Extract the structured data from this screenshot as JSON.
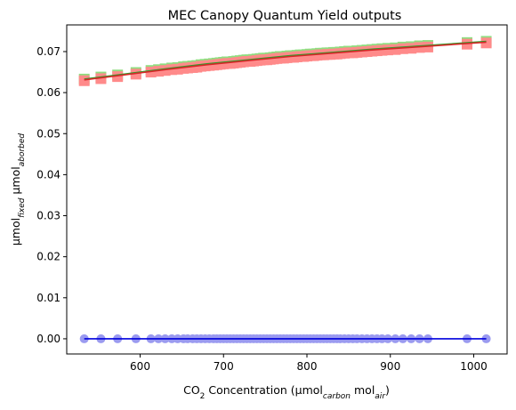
{
  "chart_data": {
    "type": "scatter",
    "title": "MEC Canopy Quantum Yield outputs",
    "xlabel_parts": [
      {
        "t": "CO",
        "sub": false
      },
      {
        "t": "2",
        "sub": true
      },
      {
        "t": " Concentration (µmol",
        "sub": false
      },
      {
        "t": "carbon",
        "sub": true
      },
      {
        "t": " mol",
        "sub": false
      },
      {
        "t": "air",
        "sub": true
      },
      {
        "t": ")",
        "sub": false
      }
    ],
    "ylabel_parts": [
      {
        "t": "µmol",
        "sub": false
      },
      {
        "t": "fixed",
        "sub": true
      },
      {
        "t": " µmol",
        "sub": false
      },
      {
        "t": "aborbed",
        "sub": true
      }
    ],
    "xlim": [
      512,
      1040
    ],
    "ylim": [
      -0.0037,
      0.0765
    ],
    "xticks": [
      600,
      700,
      800,
      900,
      1000
    ],
    "xtick_labels": [
      "600",
      "700",
      "800",
      "900",
      "1000"
    ],
    "yticks": [
      0.0,
      0.01,
      0.02,
      0.03,
      0.04,
      0.05,
      0.06,
      0.07
    ],
    "ytick_labels": [
      "0.00",
      "0.01",
      "0.02",
      "0.03",
      "0.04",
      "0.05",
      "0.06",
      "0.07"
    ],
    "grid": false,
    "x": [
      533,
      553,
      573,
      595,
      613,
      622,
      630,
      638,
      645,
      652,
      657,
      663,
      668,
      673,
      678,
      683,
      688,
      692,
      696,
      700,
      704,
      708,
      712,
      716,
      720,
      724,
      728,
      732,
      736,
      740,
      744,
      748,
      752,
      756,
      760,
      764,
      768,
      772,
      776,
      780,
      784,
      788,
      792,
      796,
      800,
      804,
      808,
      812,
      816,
      820,
      824,
      828,
      832,
      836,
      840,
      845,
      850,
      855,
      860,
      866,
      872,
      878,
      884,
      890,
      897,
      906,
      915,
      925,
      935,
      945,
      992,
      1015
    ],
    "series": [
      {
        "role": "green-squares",
        "color": "#90dd80",
        "marker": "square",
        "values": [
          0.0633,
          0.0638,
          0.0643,
          0.0649,
          0.0654,
          0.0656,
          0.0658,
          0.066,
          0.0661,
          0.0663,
          0.0664,
          0.0665,
          0.0666,
          0.0668,
          0.0669,
          0.067,
          0.0671,
          0.0672,
          0.0673,
          0.0674,
          0.0675,
          0.0675,
          0.0676,
          0.0677,
          0.0678,
          0.0679,
          0.068,
          0.068,
          0.0681,
          0.0682,
          0.0683,
          0.0684,
          0.0684,
          0.0685,
          0.0686,
          0.0687,
          0.0688,
          0.0688,
          0.0689,
          0.069,
          0.069,
          0.0691,
          0.0692,
          0.0692,
          0.0693,
          0.0694,
          0.0694,
          0.0695,
          0.0696,
          0.0696,
          0.0697,
          0.0697,
          0.0698,
          0.0698,
          0.0699,
          0.07,
          0.0701,
          0.0701,
          0.0702,
          0.0703,
          0.0704,
          0.0705,
          0.0706,
          0.0707,
          0.0708,
          0.0709,
          0.0711,
          0.0712,
          0.0714,
          0.0715,
          0.0722,
          0.0725
        ]
      },
      {
        "role": "red-squares",
        "color": "#ff8a8a",
        "marker": "square",
        "values": [
          0.0629,
          0.0634,
          0.0639,
          0.0645,
          0.065,
          0.0652,
          0.0654,
          0.0656,
          0.0657,
          0.0659,
          0.066,
          0.0661,
          0.0662,
          0.0664,
          0.0665,
          0.0666,
          0.0667,
          0.0668,
          0.0669,
          0.067,
          0.0671,
          0.0671,
          0.0672,
          0.0673,
          0.0674,
          0.0675,
          0.0676,
          0.0676,
          0.0677,
          0.0678,
          0.0679,
          0.068,
          0.068,
          0.0681,
          0.0682,
          0.0683,
          0.0684,
          0.0684,
          0.0685,
          0.0686,
          0.0686,
          0.0687,
          0.0688,
          0.0688,
          0.0689,
          0.069,
          0.069,
          0.0691,
          0.0692,
          0.0692,
          0.0693,
          0.0693,
          0.0694,
          0.0694,
          0.0695,
          0.0696,
          0.0697,
          0.0697,
          0.0698,
          0.0699,
          0.07,
          0.0701,
          0.0702,
          0.0703,
          0.0704,
          0.0705,
          0.0707,
          0.0708,
          0.071,
          0.0711,
          0.0718,
          0.0721
        ]
      },
      {
        "role": "blue-circles",
        "color": "#9a9af0",
        "marker": "circle",
        "values": [
          0,
          0,
          0,
          0,
          0,
          0,
          0,
          0,
          0,
          0,
          0,
          0,
          0,
          0,
          0,
          0,
          0,
          0,
          0,
          0,
          0,
          0,
          0,
          0,
          0,
          0,
          0,
          0,
          0,
          0,
          0,
          0,
          0,
          0,
          0,
          0,
          0,
          0,
          0,
          0,
          0,
          0,
          0,
          0,
          0,
          0,
          0,
          0,
          0,
          0,
          0,
          0,
          0,
          0,
          0,
          0,
          0,
          0,
          0,
          0,
          0,
          0,
          0,
          0,
          0,
          0,
          0,
          0,
          0,
          0,
          0,
          0
        ]
      }
    ],
    "lines": [
      {
        "role": "green-fit",
        "color": "#2ca02c",
        "x": [
          533,
          580,
          630,
          680,
          730,
          780,
          830,
          880,
          930,
          980,
          1015
        ],
        "y": [
          0.0633,
          0.0645,
          0.0658,
          0.067,
          0.068,
          0.069,
          0.0698,
          0.0706,
          0.0713,
          0.072,
          0.0725
        ]
      },
      {
        "role": "red-fit",
        "color": "#d62728",
        "x": [
          533,
          580,
          630,
          680,
          730,
          780,
          830,
          880,
          930,
          980,
          1015
        ],
        "y": [
          0.0631,
          0.0643,
          0.0656,
          0.0668,
          0.0678,
          0.0688,
          0.0696,
          0.0704,
          0.0711,
          0.0718,
          0.0723
        ]
      },
      {
        "role": "blue-fit",
        "color": "#0000dd",
        "x": [
          533,
          1015
        ],
        "y": [
          0,
          0
        ]
      }
    ]
  }
}
